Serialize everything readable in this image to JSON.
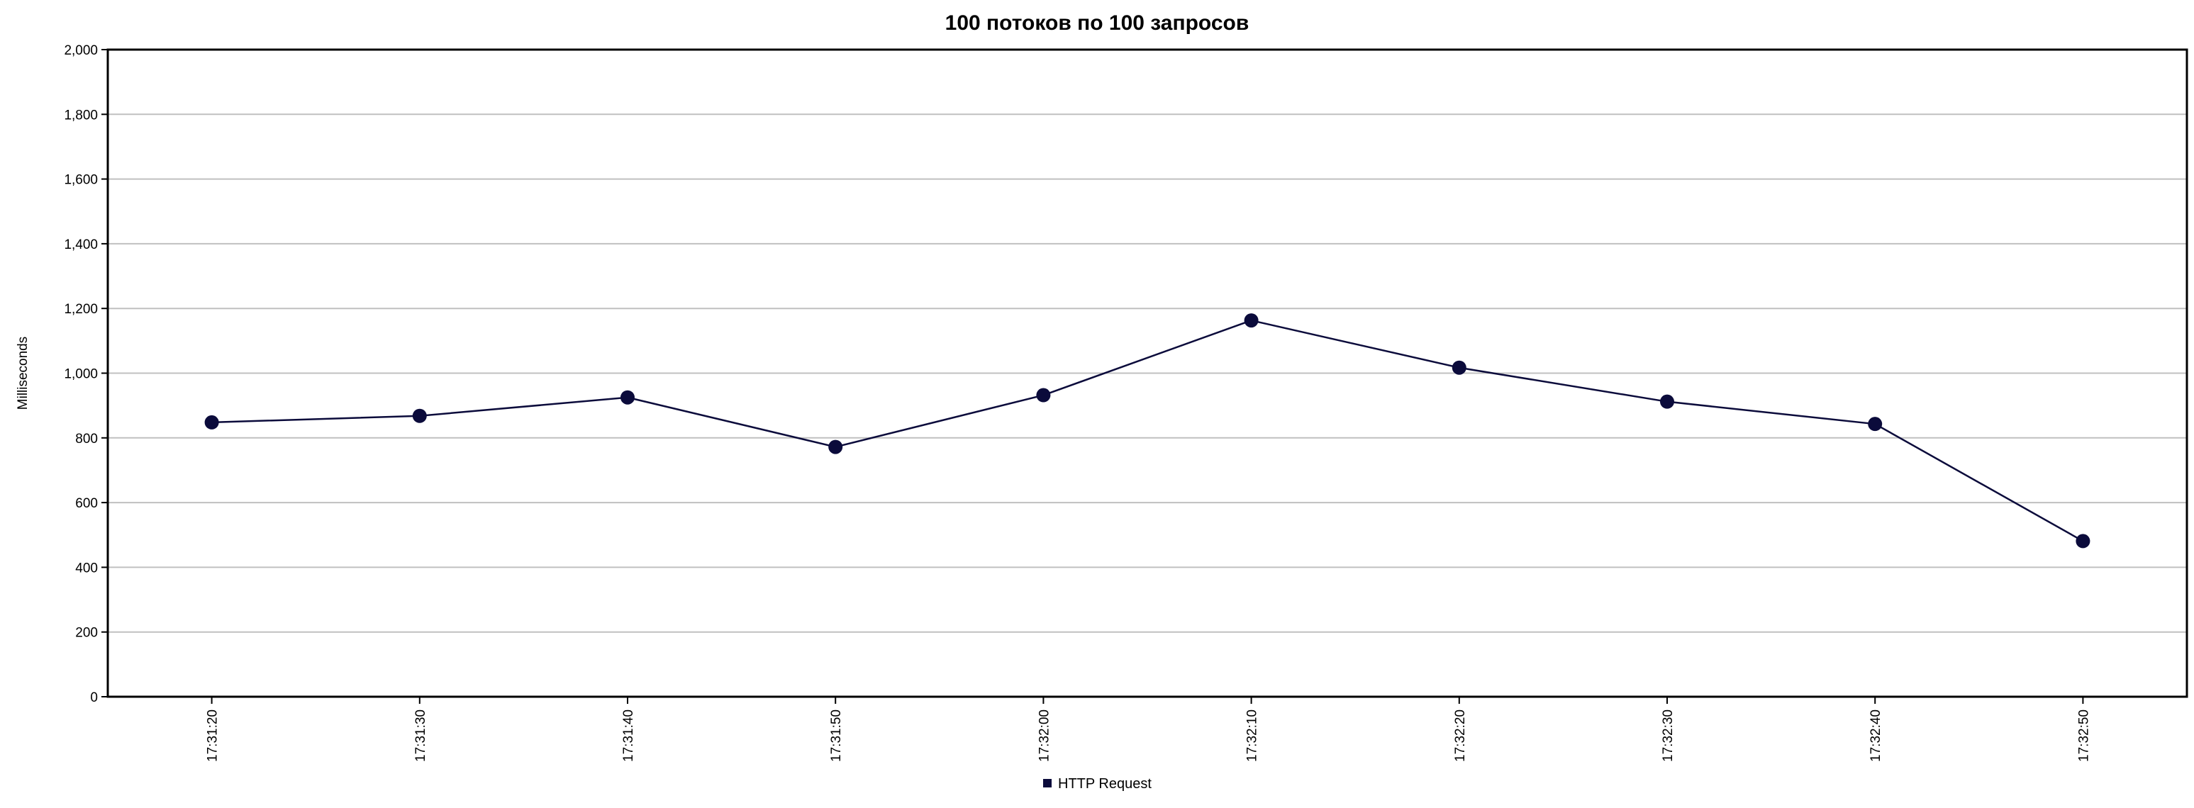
{
  "chart_data": {
    "type": "line",
    "title": "100 потоков по 100 запросов",
    "xlabel": "",
    "ylabel": "Milliseconds",
    "ylim": [
      0,
      2000
    ],
    "y_ticks": [
      "0",
      "200",
      "400",
      "600",
      "800",
      "1,000",
      "1,200",
      "1,400",
      "1,600",
      "1,800",
      "2,000"
    ],
    "y_tick_values": [
      0,
      200,
      400,
      600,
      800,
      1000,
      1200,
      1400,
      1600,
      1800,
      2000
    ],
    "categories": [
      "17:31:20",
      "17:31:30",
      "17:31:40",
      "17:31:50",
      "17:32:00",
      "17:32:10",
      "17:32:20",
      "17:32:30",
      "17:32:40",
      "17:32:50"
    ],
    "series": [
      {
        "name": "HTTP Request",
        "color": "#0b0b3b",
        "values": [
          848,
          868,
          925,
          772,
          932,
          1163,
          1017,
          912,
          843,
          481
        ]
      }
    ],
    "grid": true,
    "legend": "bottom-center"
  }
}
